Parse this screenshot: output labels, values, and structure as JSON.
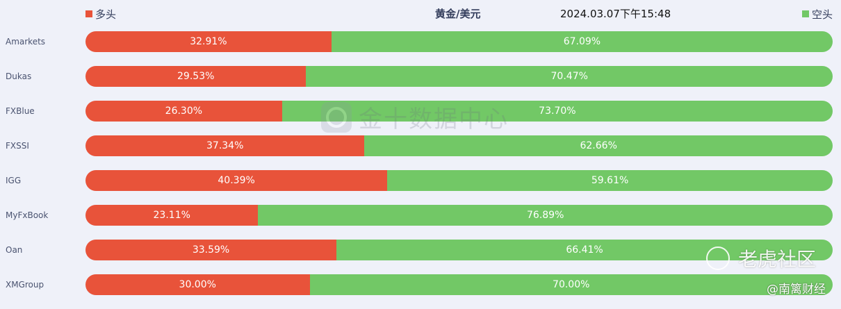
{
  "header": {
    "legend_long": "多头",
    "legend_short": "空头",
    "title": "黄金/美元",
    "timestamp": "2024.03.07下午15:48"
  },
  "colors": {
    "long": "#e8533a",
    "short": "#72c866"
  },
  "watermarks": {
    "center": "金十数据中心",
    "corner_brand": "老虎社区",
    "corner_author": "@南篱财经"
  },
  "chart_data": {
    "type": "bar",
    "orientation": "horizontal",
    "stacked": true,
    "title": "黄金/美元",
    "categories": [
      "Amarkets",
      "Dukas",
      "FXBlue",
      "FXSSI",
      "IGG",
      "MyFxBook",
      "Oan",
      "XMGroup"
    ],
    "series": [
      {
        "name": "多头",
        "values": [
          32.91,
          29.53,
          26.3,
          37.34,
          40.39,
          23.11,
          33.59,
          30.0
        ],
        "labels": [
          "32.91%",
          "29.53%",
          "26.30%",
          "37.34%",
          "40.39%",
          "23.11%",
          "33.59%",
          "30.00%"
        ]
      },
      {
        "name": "空头",
        "values": [
          67.09,
          70.47,
          73.7,
          62.66,
          59.61,
          76.89,
          66.41,
          70.0
        ],
        "labels": [
          "67.09%",
          "70.47%",
          "73.70%",
          "62.66%",
          "59.61%",
          "76.89%",
          "66.41%",
          "70.00%"
        ]
      }
    ],
    "xlim": [
      0,
      100
    ],
    "legend": "top"
  }
}
